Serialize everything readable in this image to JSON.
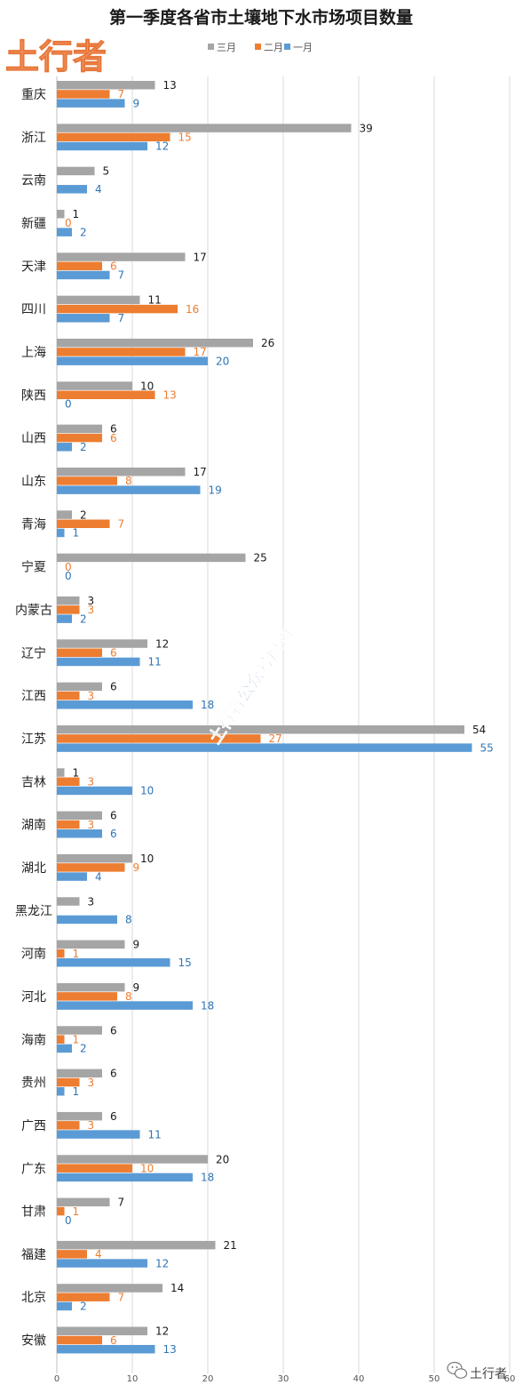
{
  "logo": {
    "text": "土行者"
  },
  "watermark": {
    "text": "土行者公众号原创"
  },
  "footer": {
    "text": "土行者",
    "icon": "wechat-icon"
  },
  "colors": {
    "三月": "#a5a5a5",
    "二月": "#ed7d31",
    "一月": "#5b9bd5",
    "grid": "#d9d9d9"
  },
  "chart_data": {
    "type": "bar",
    "orientation": "horizontal",
    "title": "第一季度各省市土壤地下水市场项目数量",
    "xlabel": "",
    "ylabel": "",
    "xlim": [
      0,
      60
    ],
    "x_ticks": [
      0,
      10,
      20,
      30,
      40,
      50,
      60
    ],
    "grid": true,
    "legend_position": "top",
    "categories": [
      "重庆",
      "浙江",
      "云南",
      "新疆",
      "天津",
      "四川",
      "上海",
      "陕西",
      "山西",
      "山东",
      "青海",
      "宁夏",
      "内蒙古",
      "辽宁",
      "江西",
      "江苏",
      "吉林",
      "湖南",
      "湖北",
      "黑龙江",
      "河南",
      "河北",
      "海南",
      "贵州",
      "广西",
      "广东",
      "甘肃",
      "福建",
      "北京",
      "安徽"
    ],
    "series": [
      {
        "name": "三月",
        "color": "#a5a5a5",
        "values": [
          13,
          39,
          5,
          1,
          17,
          11,
          26,
          10,
          6,
          17,
          2,
          25,
          3,
          12,
          6,
          54,
          1,
          6,
          10,
          3,
          9,
          9,
          6,
          6,
          6,
          20,
          7,
          21,
          14,
          12
        ]
      },
      {
        "name": "二月",
        "color": "#ed7d31",
        "values": [
          7,
          15,
          null,
          0,
          6,
          16,
          17,
          13,
          6,
          8,
          7,
          0,
          3,
          6,
          3,
          27,
          3,
          3,
          9,
          null,
          1,
          8,
          1,
          3,
          3,
          10,
          1,
          4,
          7,
          6
        ]
      },
      {
        "name": "一月",
        "color": "#5b9bd5",
        "values": [
          9,
          12,
          4,
          2,
          7,
          7,
          20,
          0,
          2,
          19,
          1,
          0,
          2,
          11,
          18,
          55,
          10,
          6,
          4,
          8,
          15,
          18,
          2,
          1,
          11,
          18,
          0,
          12,
          2,
          13
        ]
      }
    ]
  }
}
